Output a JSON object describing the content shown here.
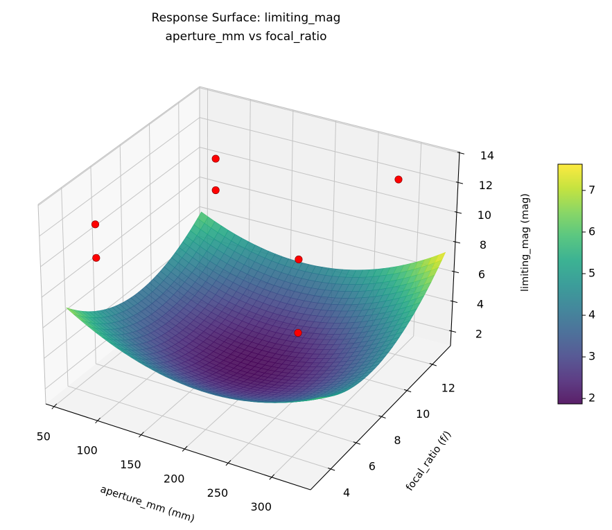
{
  "chart_data": {
    "type": "surface3d",
    "title": "Response Surface: limiting_mag",
    "subtitle": "aperture_mm vs focal_ratio",
    "xlabel": "aperture_mm (mm)",
    "ylabel": "focal_ratio (f/)",
    "zlabel": "limiting_mag (mag)",
    "xlim": [
      40.6,
      344.8
    ],
    "ylim": [
      2.41,
      13.43
    ],
    "zlim": [
      1.02,
      14.08
    ],
    "xticks": [
      50,
      100,
      150,
      200,
      250,
      300
    ],
    "yticks": [
      4,
      6,
      8,
      10,
      12
    ],
    "zticks": [
      2,
      4,
      6,
      8,
      10,
      12,
      14
    ],
    "grid": true,
    "surface": {
      "colormap": "viridis",
      "x_range": [
        50,
        340
      ],
      "y_range": [
        3.5,
        13
      ],
      "model": {
        "min": 1.9,
        "a": 9.4,
        "b": 9.4,
        "c": 2.2,
        "d": 0.4,
        "e": 0.5
      }
    },
    "colorbar": {
      "range": [
        1.87,
        7.63
      ],
      "ticks": [
        2,
        3,
        4,
        5,
        6,
        7
      ]
    },
    "points": {
      "color": "#ff0000",
      "edge": "#8b0000",
      "x": [
        112,
        112,
        81,
        81,
        285,
        285,
        300
      ],
      "y": [
        10.3,
        10.3,
        3.8,
        3.8,
        5.4,
        5.4,
        11.8
      ],
      "z": [
        12.6,
        10.5,
        12.5,
        10.3,
        12.5,
        7.7,
        12.9
      ]
    }
  }
}
